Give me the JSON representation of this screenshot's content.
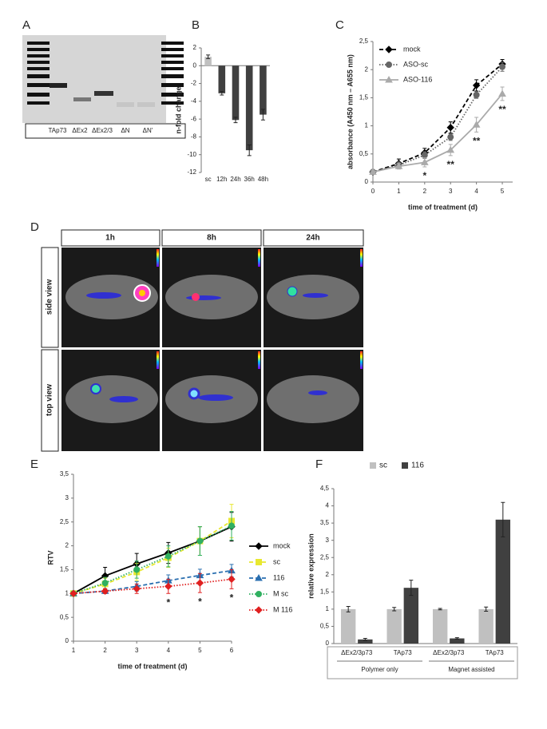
{
  "panel_labels": [
    "A",
    "B",
    "C",
    "D",
    "E",
    "F"
  ],
  "gel": {
    "lanes": [
      "TAp73",
      "ΔEx2",
      "ΔEx2/3",
      "ΔN",
      "ΔN'"
    ]
  },
  "imaging": {
    "times": [
      "1h",
      "8h",
      "24h"
    ],
    "views": [
      "side view",
      "top view"
    ]
  },
  "chart_data": [
    {
      "type": "bar",
      "y_label": "n-fold change",
      "categories": [
        "sc",
        "12h",
        "24h",
        "36h",
        "48h"
      ],
      "values": [
        1,
        -3.1,
        -6.1,
        -9.5,
        -5.5
      ],
      "errors": [
        0.2,
        0.2,
        0.3,
        0.6,
        0.6
      ],
      "colors": [
        "#c0c0c0",
        "#404040",
        "#404040",
        "#404040",
        "#404040"
      ],
      "ylim": [
        -12,
        2
      ],
      "yticks": [
        -12,
        -10,
        -8,
        -6,
        -4,
        -2,
        0,
        2
      ],
      "grid": false
    },
    {
      "type": "line",
      "x_label": "time of treatment (d)",
      "y_label": "absorbance (A450 nm – A655 nm)",
      "x": [
        0,
        1,
        2,
        3,
        4,
        5
      ],
      "xlim": [
        0,
        5.4
      ],
      "xticks": [
        0,
        1,
        2,
        3,
        4,
        5
      ],
      "ylim": [
        0,
        2.5
      ],
      "yticks": [
        0,
        {
          "value": 0.5,
          "label": "0,5"
        },
        1,
        {
          "value": 1.5,
          "label": "1,5"
        },
        2,
        {
          "value": 2.5,
          "label": "2,5"
        }
      ],
      "grid": false,
      "legend": "upper left",
      "series": [
        {
          "name": "mock",
          "color": "#000000",
          "line_style": "dashed",
          "marker": "diamond",
          "values": [
            0.18,
            0.33,
            0.52,
            0.97,
            1.72,
            2.1
          ],
          "errors": [
            0.03,
            0.08,
            0.08,
            0.1,
            0.1,
            0.08
          ]
        },
        {
          "name": "ASO-sc",
          "color": "#666666",
          "line_style": "dotted",
          "marker": "circle",
          "values": [
            0.18,
            0.3,
            0.48,
            0.8,
            1.55,
            2.05
          ],
          "errors": [
            0.03,
            0.06,
            0.06,
            0.06,
            0.06,
            0.08
          ]
        },
        {
          "name": "ASO-116",
          "color": "#aaaaaa",
          "line_style": "solid",
          "marker": "triangle",
          "values": [
            0.18,
            0.28,
            0.35,
            0.57,
            1.02,
            1.57
          ],
          "errors": [
            0.03,
            0.05,
            0.08,
            0.1,
            0.13,
            0.12
          ]
        }
      ],
      "annotations": [
        {
          "text": "*",
          "x": 2
        },
        {
          "text": "**",
          "x": 3
        },
        {
          "text": "**",
          "x": 4
        },
        {
          "text": "**",
          "x": 5
        }
      ]
    },
    {
      "type": "line",
      "x_label": "time of treatment (d)",
      "y_label": "RTV",
      "x": [
        1,
        2,
        3,
        4,
        5,
        6
      ],
      "xlim": [
        1,
        6
      ],
      "xticks": [
        1,
        2,
        3,
        4,
        5,
        6
      ],
      "ylim": [
        0,
        3.5
      ],
      "yticks": [
        0,
        {
          "value": 0.5,
          "label": "0,5"
        },
        1,
        {
          "value": 1.5,
          "label": "1,5"
        },
        2,
        {
          "value": 2.5,
          "label": "2,5"
        },
        3,
        {
          "value": 3.5,
          "label": "3,5"
        }
      ],
      "grid": false,
      "legend": "right",
      "series": [
        {
          "name": "mock",
          "color": "#000000",
          "line_style": "solid",
          "marker": "diamond",
          "values": [
            1,
            1.37,
            1.62,
            1.85,
            2.1,
            2.4
          ],
          "errors": [
            0.02,
            0.18,
            0.22,
            0.22,
            0.3,
            0.3
          ]
        },
        {
          "name": "sc",
          "color": "#e8e830",
          "line_style": "dashed",
          "marker": "square",
          "values": [
            1,
            1.2,
            1.45,
            1.75,
            2.1,
            2.52
          ],
          "errors": [
            0.02,
            0.12,
            0.18,
            0.2,
            0.3,
            0.35
          ]
        },
        {
          "name": "116",
          "color": "#2a6fb0",
          "line_style": "dashed",
          "marker": "triangle",
          "values": [
            1,
            1.05,
            1.15,
            1.27,
            1.38,
            1.48
          ],
          "errors": [
            0.02,
            0.05,
            0.1,
            0.12,
            0.13,
            0.13
          ]
        },
        {
          "name": "M sc",
          "color": "#30b060",
          "line_style": "dotted",
          "marker": "circle",
          "values": [
            1,
            1.22,
            1.5,
            1.78,
            2.1,
            2.42
          ],
          "errors": [
            0.02,
            0.12,
            0.18,
            0.22,
            0.3,
            0.3
          ]
        },
        {
          "name": "M 116",
          "color": "#e02020",
          "line_style": "dotted",
          "marker": "diamond",
          "values": [
            1,
            1.05,
            1.1,
            1.15,
            1.22,
            1.3
          ],
          "errors": [
            0.02,
            0.05,
            0.1,
            0.15,
            0.2,
            0.2
          ]
        }
      ],
      "annotations": [
        {
          "text": "*",
          "x": 4
        },
        {
          "text": "*",
          "x": 5
        },
        {
          "text": "*",
          "x": 6
        }
      ]
    },
    {
      "type": "bar",
      "y_label": "relative expression",
      "categories": [
        "ΔEx2/3p73",
        "TAp73",
        "ΔEx2/3p73",
        "TAp73"
      ],
      "group_labels": [
        "Polymer only",
        "Magnet assisted"
      ],
      "ylim": [
        0,
        4.5
      ],
      "yticks": [
        0,
        {
          "value": 0.5,
          "label": "0,5"
        },
        1,
        {
          "value": 1.5,
          "label": "1,5"
        },
        2,
        {
          "value": 2.5,
          "label": "2,5"
        },
        3,
        {
          "value": 3.5,
          "label": "3,5"
        },
        4,
        {
          "value": 4.5,
          "label": "4,5"
        }
      ],
      "grid": false,
      "legend": "top",
      "series": [
        {
          "name": "sc",
          "color": "#c0c0c0",
          "values": [
            1,
            1,
            1,
            1
          ],
          "errors": [
            0.08,
            0.05,
            0.02,
            0.06
          ]
        },
        {
          "name": "116",
          "color": "#404040",
          "values": [
            0.12,
            1.62,
            0.15,
            3.6
          ],
          "errors": [
            0.03,
            0.22,
            0.02,
            0.5
          ]
        }
      ]
    }
  ]
}
